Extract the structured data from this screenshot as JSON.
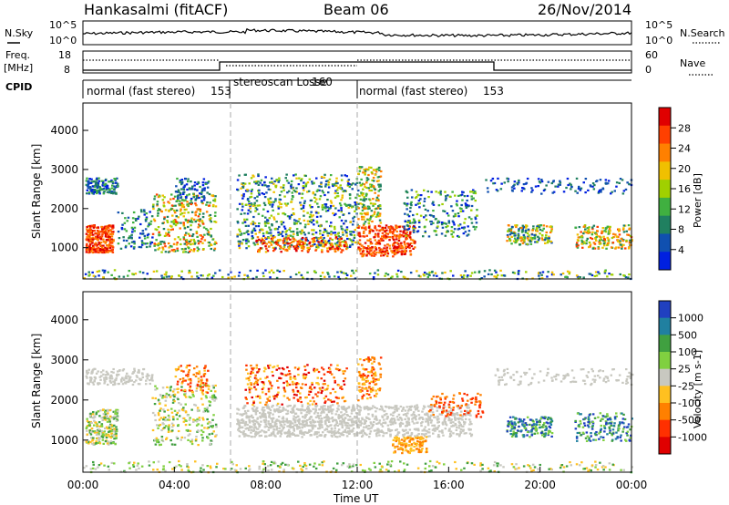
{
  "header": {
    "station": "Hankasalmi (fitACF)",
    "beam": "Beam 06",
    "date": "26/Nov/2014"
  },
  "chart_data": [
    {
      "type": "line",
      "label_left_1": "N.Sky",
      "label_right_1": "N.Search",
      "left_ticks": [
        "10^5",
        "10^0"
      ],
      "right_ticks": [
        "10^5",
        "10^0"
      ]
    },
    {
      "type": "line",
      "label_left_top": "Freq.",
      "label_left_bottom": "[MHz]",
      "label_right": "Nave",
      "left_ticks": [
        "18",
        "8"
      ],
      "right_ticks": [
        "60",
        "0"
      ]
    },
    {
      "type": "table",
      "label": "CPID",
      "segments": [
        {
          "name": "normal (fast stereo)",
          "cpid": "153",
          "start_hour": 0,
          "end_hour": 6.6
        },
        {
          "name": "stereoscan Losse",
          "cpid": "160",
          "start_hour": 6.6,
          "end_hour": 12.0
        },
        {
          "name": "normal (fast stereo)",
          "cpid": "153",
          "start_hour": 12.0,
          "end_hour": 24
        }
      ]
    },
    {
      "type": "heatmap",
      "ylabel": "Slant Range [km]",
      "yticks": [
        1000,
        2000,
        3000,
        4000
      ],
      "ylim": [
        200,
        4700
      ],
      "colorbar_label": "Power [dB]",
      "colorbar_ticks": [
        "28",
        "24",
        "20",
        "16",
        "12",
        "8",
        "4"
      ],
      "colors": [
        "#e00000",
        "#ff4000",
        "#ff8000",
        "#f0c000",
        "#a0d000",
        "#40b040",
        "#208060",
        "#1050b0",
        "#0020e0"
      ]
    },
    {
      "type": "heatmap",
      "ylabel": "Slant Range [km]",
      "yticks": [
        1000,
        2000,
        3000,
        4000
      ],
      "ylim": [
        200,
        4700
      ],
      "colorbar_label": "Velocity [m s-1]",
      "colorbar_ticks": [
        "1000",
        "500",
        "100",
        "25",
        "-25",
        "-100",
        "-500",
        "-1000"
      ],
      "colors": [
        "#2040c0",
        "#2080a0",
        "#40a040",
        "#80d040",
        "#c8c8c0",
        "#ffc020",
        "#ff8000",
        "#ff3000",
        "#e00000"
      ]
    }
  ],
  "xaxis": {
    "ticks": [
      "00:00",
      "04:00",
      "08:00",
      "12:00",
      "16:00",
      "20:00",
      "00:00"
    ],
    "label": "Time UT"
  }
}
